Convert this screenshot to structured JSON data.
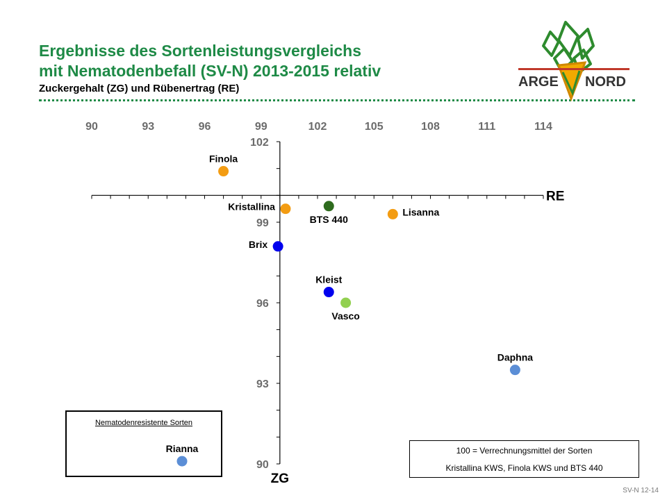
{
  "header": {
    "title_line1": "Ergebnisse des Sortenleistungsvergleichs",
    "title_line2": "mit Nematodenbefall (SV-N) 2013-2015 relativ",
    "subtitle": "Zuckergehalt (ZG) und Rübenertrag (RE)"
  },
  "logo": {
    "text_left": "ARGE",
    "text_right": "NORD",
    "colors": {
      "green": "#2e8b2e",
      "yellow": "#f2a900",
      "red": "#c0392b"
    }
  },
  "legend": {
    "title": "Nematodenresistente Sorten"
  },
  "note": {
    "line1": "100 = Verrechnungsmittel der Sorten",
    "line2": "Kristallina KWS, Finola KWS und BTS 440"
  },
  "footer": {
    "code": "SV-N 12-14"
  },
  "chart_data": {
    "type": "scatter",
    "xlabel": "RE",
    "ylabel": "ZG",
    "xlim": [
      90,
      114
    ],
    "ylim": [
      90,
      102
    ],
    "xticks": [
      90,
      93,
      96,
      99,
      102,
      105,
      108,
      111,
      114
    ],
    "yticks": [
      90,
      93,
      96,
      99,
      102
    ],
    "axis_cross": {
      "x": 100,
      "y": 100
    },
    "points": [
      {
        "label": "Finola",
        "x": 97.0,
        "y": 100.9,
        "color": "#f39c12",
        "label_pos": "above"
      },
      {
        "label": "Kristallina",
        "x": 100.3,
        "y": 99.5,
        "color": "#f39c12",
        "label_pos": "left"
      },
      {
        "label": "BTS 440",
        "x": 102.6,
        "y": 99.6,
        "color": "#2e6b1e",
        "label_pos": "below"
      },
      {
        "label": "Lisanna",
        "x": 106.0,
        "y": 99.3,
        "color": "#f39c12",
        "label_pos": "right"
      },
      {
        "label": "Brix",
        "x": 99.9,
        "y": 98.1,
        "color": "#0000ee",
        "label_pos": "left"
      },
      {
        "label": "Kleist",
        "x": 102.6,
        "y": 96.4,
        "color": "#0000ee",
        "label_pos": "above"
      },
      {
        "label": "Vasco",
        "x": 103.5,
        "y": 96.0,
        "color": "#92d050",
        "label_pos": "below"
      },
      {
        "label": "Daphna",
        "x": 112.5,
        "y": 93.5,
        "color": "#5b8ed6",
        "label_pos": "above"
      },
      {
        "label": "Rianna",
        "x": 94.8,
        "y": 90.1,
        "color": "#5b8ed6",
        "label_pos": "above"
      }
    ]
  }
}
